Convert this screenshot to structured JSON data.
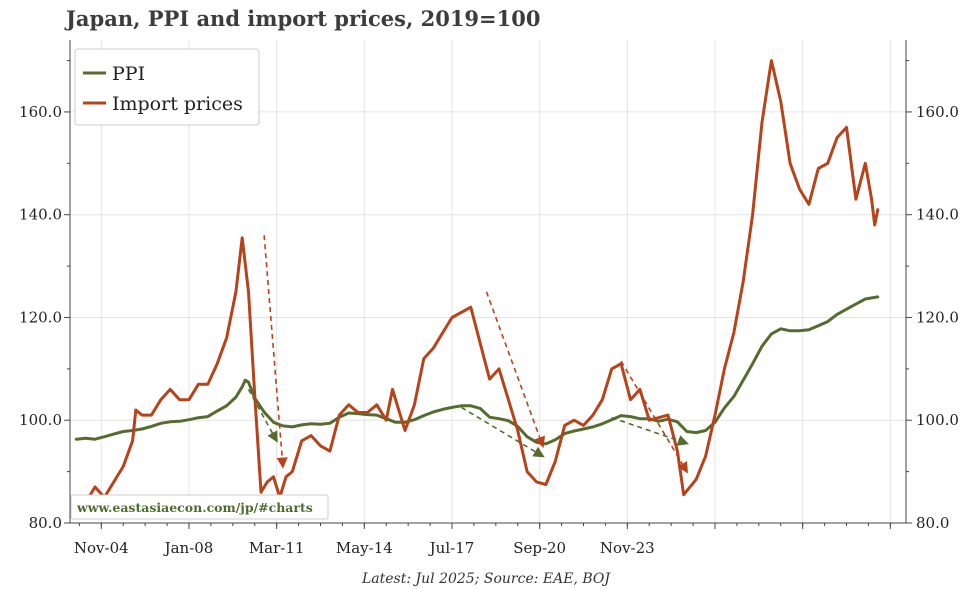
{
  "chart_data": {
    "type": "line",
    "title": "Japan, PPI and import prices, 2019=100",
    "xlabel": "",
    "ylabel": "",
    "x_tick_labels": [
      "Nov-04",
      "Jan-08",
      "Mar-11",
      "May-14",
      "Jul-17",
      "Sep-20",
      "Nov-23"
    ],
    "y_tick_labels": [
      "80.0",
      "100.0",
      "120.0",
      "140.0",
      "160.0"
    ],
    "ylim": [
      80,
      174
    ],
    "xlim": [
      "2004-01",
      "2026-04"
    ],
    "grid": true,
    "legend_position": "top-left",
    "colors": {
      "PPI": "#556b2f",
      "Import prices": "#b8431a"
    },
    "series": [
      {
        "name": "PPI",
        "color": "#556b2f",
        "points": [
          [
            "2004-03",
            96.3
          ],
          [
            "2004-06",
            96.5
          ],
          [
            "2004-09",
            96.3
          ],
          [
            "2004-12",
            96.8
          ],
          [
            "2005-03",
            97.3
          ],
          [
            "2005-06",
            97.8
          ],
          [
            "2005-09",
            98.0
          ],
          [
            "2005-12",
            98.3
          ],
          [
            "2006-03",
            98.8
          ],
          [
            "2006-06",
            99.4
          ],
          [
            "2006-09",
            99.7
          ],
          [
            "2006-12",
            99.8
          ],
          [
            "2007-03",
            100.1
          ],
          [
            "2007-06",
            100.5
          ],
          [
            "2007-09",
            100.7
          ],
          [
            "2007-12",
            101.8
          ],
          [
            "2008-03",
            102.8
          ],
          [
            "2008-06",
            104.5
          ],
          [
            "2008-08",
            106.5
          ],
          [
            "2008-09",
            107.8
          ],
          [
            "2008-10",
            107.4
          ],
          [
            "2008-12",
            104.3
          ],
          [
            "2009-03",
            101.6
          ],
          [
            "2009-06",
            99.6
          ],
          [
            "2009-09",
            98.9
          ],
          [
            "2009-12",
            98.7
          ],
          [
            "2010-03",
            99.1
          ],
          [
            "2010-06",
            99.3
          ],
          [
            "2010-09",
            99.2
          ],
          [
            "2010-12",
            99.4
          ],
          [
            "2011-03",
            100.6
          ],
          [
            "2011-06",
            101.4
          ],
          [
            "2011-09",
            101.3
          ],
          [
            "2011-12",
            101.1
          ],
          [
            "2012-03",
            101.0
          ],
          [
            "2012-06",
            100.3
          ],
          [
            "2012-09",
            99.6
          ],
          [
            "2012-12",
            99.6
          ],
          [
            "2013-03",
            100.1
          ],
          [
            "2013-06",
            100.9
          ],
          [
            "2013-09",
            101.6
          ],
          [
            "2013-12",
            102.1
          ],
          [
            "2014-03",
            102.5
          ],
          [
            "2014-06",
            102.8
          ],
          [
            "2014-09",
            102.8
          ],
          [
            "2014-12",
            102.3
          ],
          [
            "2015-03",
            100.6
          ],
          [
            "2015-06",
            100.3
          ],
          [
            "2015-09",
            99.9
          ],
          [
            "2015-12",
            98.8
          ],
          [
            "2016-03",
            96.8
          ],
          [
            "2016-06",
            95.7
          ],
          [
            "2016-09",
            95.4
          ],
          [
            "2016-12",
            96.2
          ],
          [
            "2017-03",
            97.4
          ],
          [
            "2017-06",
            97.9
          ],
          [
            "2017-09",
            98.3
          ],
          [
            "2017-12",
            98.7
          ],
          [
            "2018-03",
            99.3
          ],
          [
            "2018-06",
            100.1
          ],
          [
            "2018-09",
            100.9
          ],
          [
            "2018-12",
            100.7
          ],
          [
            "2019-03",
            100.3
          ],
          [
            "2019-06",
            100.3
          ],
          [
            "2019-09",
            99.8
          ],
          [
            "2019-12",
            100.2
          ],
          [
            "2020-03",
            99.7
          ],
          [
            "2020-06",
            97.8
          ],
          [
            "2020-09",
            97.6
          ],
          [
            "2020-12",
            98.0
          ],
          [
            "2021-03",
            99.6
          ],
          [
            "2021-06",
            102.4
          ],
          [
            "2021-09",
            104.6
          ],
          [
            "2021-12",
            107.8
          ],
          [
            "2022-03",
            111.0
          ],
          [
            "2022-06",
            114.4
          ],
          [
            "2022-09",
            116.8
          ],
          [
            "2022-12",
            117.8
          ],
          [
            "2023-03",
            117.4
          ],
          [
            "2023-06",
            117.4
          ],
          [
            "2023-09",
            117.6
          ],
          [
            "2023-12",
            118.4
          ],
          [
            "2024-03",
            119.2
          ],
          [
            "2024-06",
            120.6
          ],
          [
            "2024-09",
            121.6
          ],
          [
            "2024-12",
            122.6
          ],
          [
            "2025-03",
            123.6
          ],
          [
            "2025-07",
            124.0
          ]
        ]
      },
      {
        "name": "Import prices",
        "color": "#b8431a",
        "points": [
          [
            "2004-03",
            82.0
          ],
          [
            "2004-06",
            84.0
          ],
          [
            "2004-09",
            87.0
          ],
          [
            "2004-12",
            85.0
          ],
          [
            "2005-03",
            88.0
          ],
          [
            "2005-06",
            91.0
          ],
          [
            "2005-09",
            96.0
          ],
          [
            "2005-10",
            102.0
          ],
          [
            "2005-12",
            101.0
          ],
          [
            "2006-03",
            101.0
          ],
          [
            "2006-06",
            104.0
          ],
          [
            "2006-09",
            106.0
          ],
          [
            "2006-12",
            104.0
          ],
          [
            "2007-03",
            104.0
          ],
          [
            "2007-06",
            107.0
          ],
          [
            "2007-09",
            107.0
          ],
          [
            "2007-12",
            111.0
          ],
          [
            "2008-03",
            116.0
          ],
          [
            "2008-06",
            125.0
          ],
          [
            "2008-08",
            135.5
          ],
          [
            "2008-10",
            125.0
          ],
          [
            "2008-12",
            105.0
          ],
          [
            "2009-02",
            86.0
          ],
          [
            "2009-04",
            88.0
          ],
          [
            "2009-06",
            89.0
          ],
          [
            "2009-08",
            85.0
          ],
          [
            "2009-10",
            89.0
          ],
          [
            "2009-12",
            90.0
          ],
          [
            "2010-03",
            96.0
          ],
          [
            "2010-06",
            97.0
          ],
          [
            "2010-09",
            95.0
          ],
          [
            "2010-12",
            94.0
          ],
          [
            "2011-03",
            101.0
          ],
          [
            "2011-06",
            103.0
          ],
          [
            "2011-09",
            101.5
          ],
          [
            "2011-12",
            101.5
          ],
          [
            "2012-03",
            103.0
          ],
          [
            "2012-06",
            100.0
          ],
          [
            "2012-08",
            106.0
          ],
          [
            "2012-12",
            98.0
          ],
          [
            "2013-03",
            103.0
          ],
          [
            "2013-06",
            112.0
          ],
          [
            "2013-09",
            114.0
          ],
          [
            "2013-12",
            117.0
          ],
          [
            "2014-03",
            120.0
          ],
          [
            "2014-06",
            121.0
          ],
          [
            "2014-09",
            122.0
          ],
          [
            "2014-12",
            115.0
          ],
          [
            "2015-03",
            108.0
          ],
          [
            "2015-06",
            110.0
          ],
          [
            "2015-09",
            104.0
          ],
          [
            "2015-12",
            98.0
          ],
          [
            "2016-03",
            90.0
          ],
          [
            "2016-06",
            88.0
          ],
          [
            "2016-09",
            87.5
          ],
          [
            "2016-12",
            92.0
          ],
          [
            "2017-03",
            99.0
          ],
          [
            "2017-06",
            100.0
          ],
          [
            "2017-09",
            99.0
          ],
          [
            "2017-12",
            101.0
          ],
          [
            "2018-03",
            104.0
          ],
          [
            "2018-06",
            110.0
          ],
          [
            "2018-09",
            111.0
          ],
          [
            "2018-12",
            104.0
          ],
          [
            "2019-03",
            106.0
          ],
          [
            "2019-06",
            100.0
          ],
          [
            "2019-09",
            100.5
          ],
          [
            "2019-12",
            101.0
          ],
          [
            "2020-03",
            94.0
          ],
          [
            "2020-05",
            85.5
          ],
          [
            "2020-09",
            88.5
          ],
          [
            "2020-12",
            93.0
          ],
          [
            "2021-03",
            101.0
          ],
          [
            "2021-06",
            110.0
          ],
          [
            "2021-09",
            117.0
          ],
          [
            "2021-12",
            127.0
          ],
          [
            "2022-03",
            140.0
          ],
          [
            "2022-06",
            158.0
          ],
          [
            "2022-09",
            170.0
          ],
          [
            "2022-12",
            162.0
          ],
          [
            "2023-03",
            150.0
          ],
          [
            "2023-06",
            145.0
          ],
          [
            "2023-09",
            142.0
          ],
          [
            "2023-12",
            149.0
          ],
          [
            "2024-03",
            150.0
          ],
          [
            "2024-06",
            155.0
          ],
          [
            "2024-09",
            157.0
          ],
          [
            "2024-12",
            143.0
          ],
          [
            "2025-03",
            150.0
          ],
          [
            "2025-05",
            143.0
          ],
          [
            "2025-06",
            138.0
          ],
          [
            "2025-07",
            141.0
          ]
        ]
      }
    ],
    "annotations": [
      {
        "series": "PPI",
        "from": [
          "2008-10",
          106.0
        ],
        "to": [
          "2009-07",
          96.0
        ]
      },
      {
        "series": "Import prices",
        "from": [
          "2009-03",
          136.0
        ],
        "to": [
          "2009-09",
          91.0
        ]
      },
      {
        "series": "PPI",
        "from": [
          "2014-06",
          102.5
        ],
        "to": [
          "2016-08",
          93.0
        ]
      },
      {
        "series": "Import prices",
        "from": [
          "2015-02",
          125.0
        ],
        "to": [
          "2016-08",
          95.0
        ]
      },
      {
        "series": "PPI",
        "from": [
          "2018-06",
          100.5
        ],
        "to": [
          "2020-06",
          95.5
        ]
      },
      {
        "series": "Import prices",
        "from": [
          "2018-09",
          111.5
        ],
        "to": [
          "2020-06",
          90.0
        ]
      }
    ],
    "source_note": "Latest: Jul 2025; Source: EAE, BOJ",
    "watermark": "www.eastasiaecon.com/jp/#charts"
  }
}
